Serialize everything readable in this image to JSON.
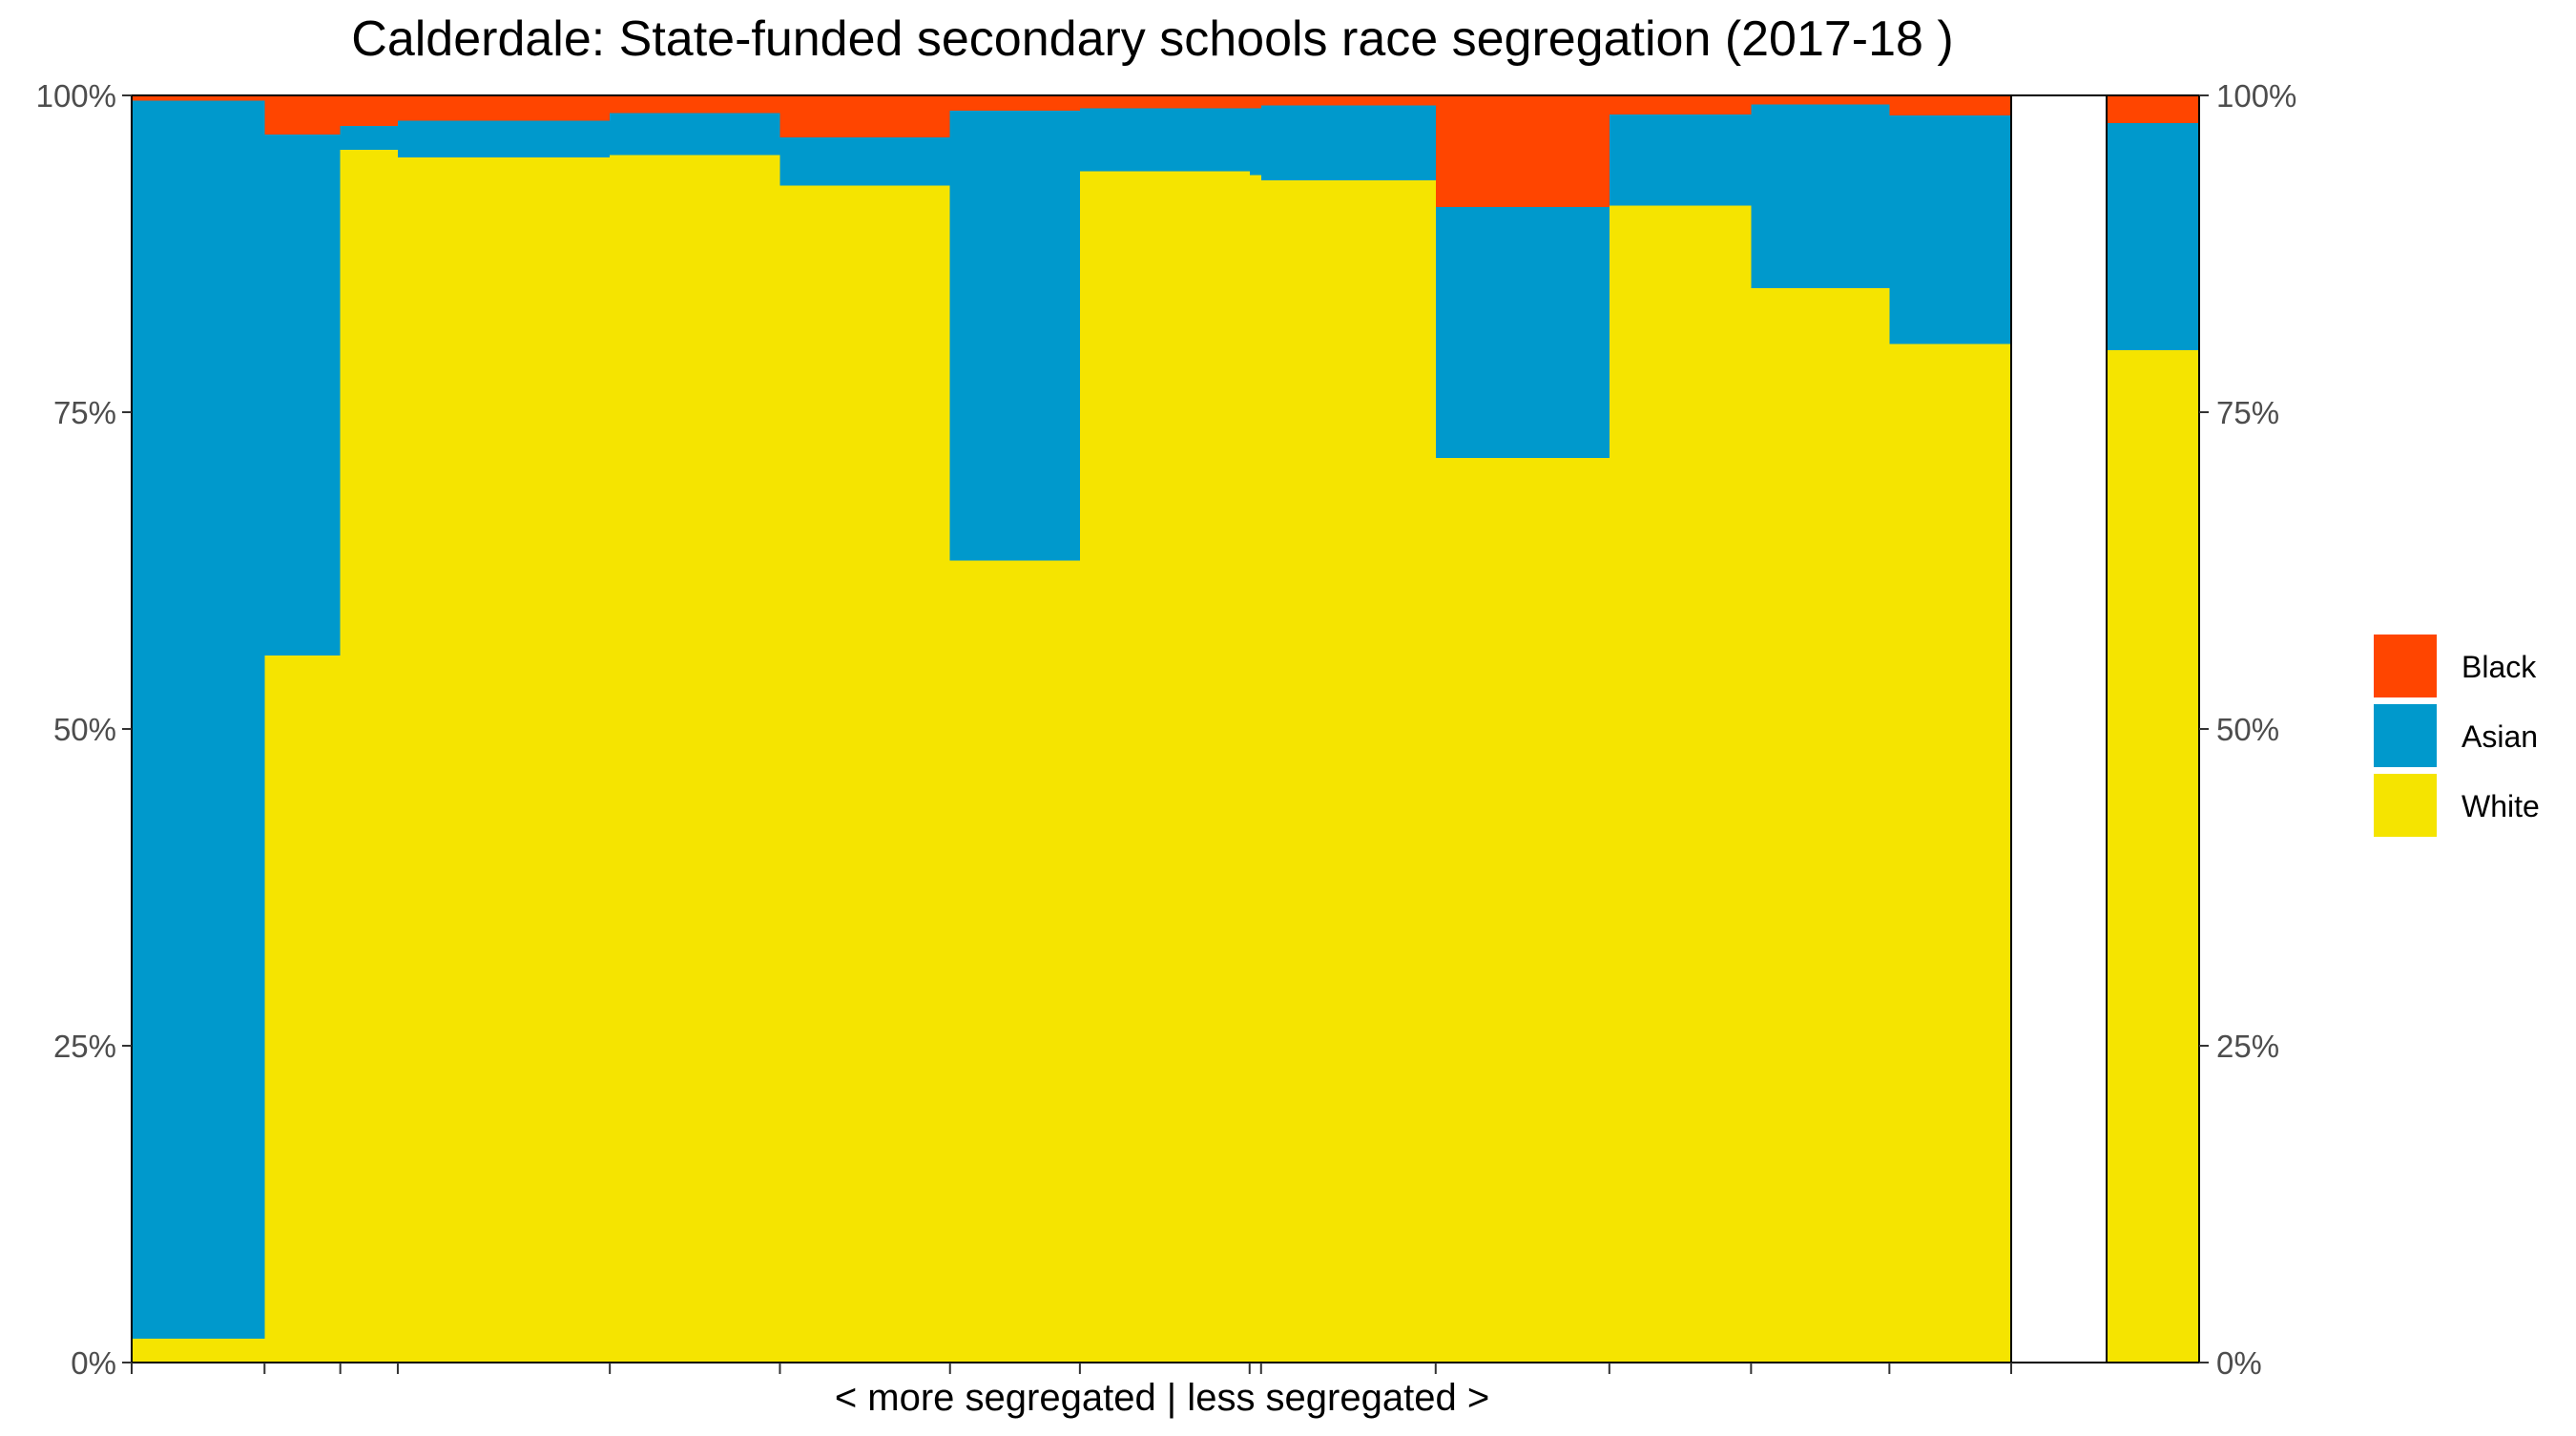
{
  "chart_data": {
    "type": "bar",
    "subtype": "variable-width stacked bar (proportional)",
    "title": "Calderdale: State-funded secondary schools race segregation (2017-18 )",
    "xlabel": "< more segregated | less segregated >",
    "ylabel": "",
    "ylim": [
      0,
      1
    ],
    "y_ticks": [
      "0%",
      "25%",
      "50%",
      "75%",
      "100%"
    ],
    "stack_order_bottom_to_top": [
      "White",
      "Asian",
      "Black"
    ],
    "legend": {
      "position": "right",
      "entries": [
        {
          "name": "Black",
          "color": "#FF4500"
        },
        {
          "name": "Asian",
          "color": "#0099CC"
        },
        {
          "name": "White",
          "color": "#F5E400"
        }
      ]
    },
    "colors": {
      "White": "#F5E400",
      "Asian": "#0099CC",
      "Black": "#FF4500"
    },
    "x_axis_range": [
      0,
      1
    ],
    "x_ticks": [
      0,
      0.0707,
      0.111,
      0.1416,
      0.2544,
      0.3449,
      0.4354,
      0.5045,
      0.5948,
      0.6009,
      0.6938,
      0.7862,
      0.8616,
      0.9352,
      1.0
    ],
    "schools": [
      {
        "x_start": 0.0,
        "x_end": 0.0707,
        "White": 0.019,
        "Asian": 0.977,
        "Black": 0.004
      },
      {
        "x_start": 0.0707,
        "x_end": 0.111,
        "White": 0.558,
        "Asian": 0.411,
        "Black": 0.031
      },
      {
        "x_start": 0.111,
        "x_end": 0.1416,
        "White": 0.957,
        "Asian": 0.019,
        "Black": 0.024
      },
      {
        "x_start": 0.1416,
        "x_end": 0.2544,
        "White": 0.951,
        "Asian": 0.029,
        "Black": 0.02
      },
      {
        "x_start": 0.2544,
        "x_end": 0.3449,
        "White": 0.953,
        "Asian": 0.033,
        "Black": 0.014
      },
      {
        "x_start": 0.3449,
        "x_end": 0.4354,
        "White": 0.929,
        "Asian": 0.038,
        "Black": 0.033
      },
      {
        "x_start": 0.4354,
        "x_end": 0.5045,
        "White": 0.633,
        "Asian": 0.355,
        "Black": 0.012
      },
      {
        "x_start": 0.5045,
        "x_end": 0.5948,
        "White": 0.94,
        "Asian": 0.05,
        "Black": 0.01
      },
      {
        "x_start": 0.5948,
        "x_end": 0.6009,
        "White": 0.937,
        "Asian": 0.053,
        "Black": 0.01
      },
      {
        "x_start": 0.6009,
        "x_end": 0.6938,
        "White": 0.933,
        "Asian": 0.059,
        "Black": 0.008
      },
      {
        "x_start": 0.6938,
        "x_end": 0.7862,
        "White": 0.714,
        "Asian": 0.198,
        "Black": 0.088
      },
      {
        "x_start": 0.7862,
        "x_end": 0.8616,
        "White": 0.913,
        "Asian": 0.072,
        "Black": 0.015
      },
      {
        "x_start": 0.8616,
        "x_end": 0.9352,
        "White": 0.848,
        "Asian": 0.145,
        "Black": 0.007
      },
      {
        "x_start": 0.9352,
        "x_end": 1.0,
        "White": 0.804,
        "Asian": 0.18,
        "Black": 0.016
      }
    ],
    "overall": {
      "White": 0.799,
      "Asian": 0.179,
      "Black": 0.022
    }
  }
}
